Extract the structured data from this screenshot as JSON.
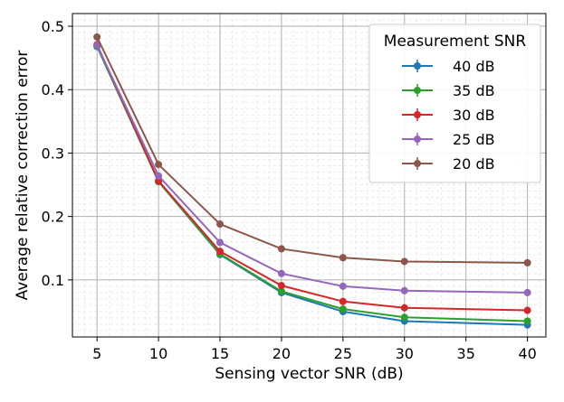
{
  "chart_data": {
    "type": "line",
    "title": "",
    "xlabel": "Sensing vector SNR (dB)",
    "ylabel": "Average relative correction error",
    "x": [
      5,
      10,
      15,
      20,
      25,
      30,
      40
    ],
    "xticks": [
      5,
      10,
      15,
      20,
      25,
      30,
      35,
      40
    ],
    "yticks": [
      0.1,
      0.2,
      0.3,
      0.4,
      0.5
    ],
    "xlim": [
      3,
      41.5
    ],
    "ylim": [
      0.01,
      0.52
    ],
    "grid": true,
    "legend": {
      "title": "Measurement SNR",
      "placement": "top-right"
    },
    "series": [
      {
        "name": "40 dB",
        "color": "#1f77b4",
        "values": [
          0.468,
          0.255,
          0.14,
          0.08,
          0.05,
          0.035,
          0.029
        ]
      },
      {
        "name": "35 dB",
        "color": "#2ca02c",
        "values": [
          0.469,
          0.255,
          0.141,
          0.082,
          0.054,
          0.041,
          0.035
        ]
      },
      {
        "name": "30 dB",
        "color": "#d62728",
        "values": [
          0.471,
          0.256,
          0.145,
          0.091,
          0.066,
          0.056,
          0.052
        ]
      },
      {
        "name": "25 dB",
        "color": "#9467bd",
        "values": [
          0.47,
          0.264,
          0.159,
          0.11,
          0.09,
          0.083,
          0.08
        ]
      },
      {
        "name": "20 dB",
        "color": "#8c564b",
        "values": [
          0.483,
          0.282,
          0.188,
          0.149,
          0.135,
          0.129,
          0.127
        ]
      }
    ]
  }
}
